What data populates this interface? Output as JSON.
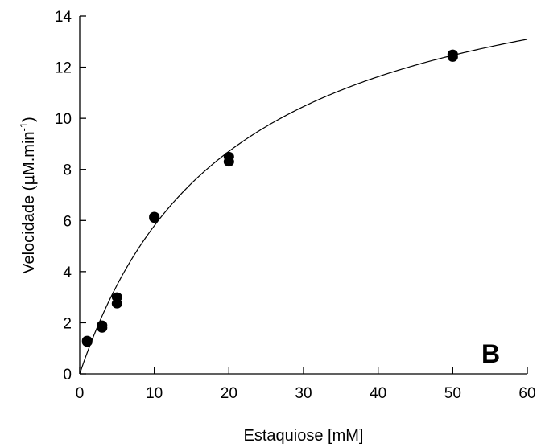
{
  "chart_data": {
    "type": "scatter",
    "title": "",
    "xlabel": "Estaquiose [mM]",
    "ylabel_main": "Velocidade (",
    "ylabel_mu": "μ",
    "ylabel_unit": "M.min",
    "ylabel_sup": "-1",
    "ylabel_close": ")",
    "panel_label": "B",
    "xlim": [
      0,
      60
    ],
    "ylim": [
      0,
      14
    ],
    "xticks": [
      0,
      10,
      20,
      30,
      40,
      50,
      60
    ],
    "yticks": [
      0,
      2,
      4,
      6,
      8,
      10,
      12,
      14
    ],
    "xtick_labels": [
      "0",
      "10",
      "20",
      "30",
      "40",
      "50",
      "60"
    ],
    "ytick_labels": [
      "0",
      "2",
      "4",
      "6",
      "8",
      "10",
      "12",
      "14"
    ],
    "grid": false,
    "series": [
      {
        "kind": "points",
        "x": [
          1,
          1,
          3,
          3,
          5,
          5,
          10,
          10,
          20,
          20,
          50,
          50
        ],
        "y": [
          1.25,
          1.3,
          1.8,
          1.9,
          2.75,
          3.0,
          6.1,
          6.15,
          8.3,
          8.5,
          12.4,
          12.5
        ]
      },
      {
        "kind": "fit-curve",
        "model": "michaelis-menten",
        "vmax": 17.5,
        "km": 20.2
      }
    ],
    "colors": {
      "points": "#000000",
      "curve": "#000000",
      "axes": "#000000"
    }
  }
}
